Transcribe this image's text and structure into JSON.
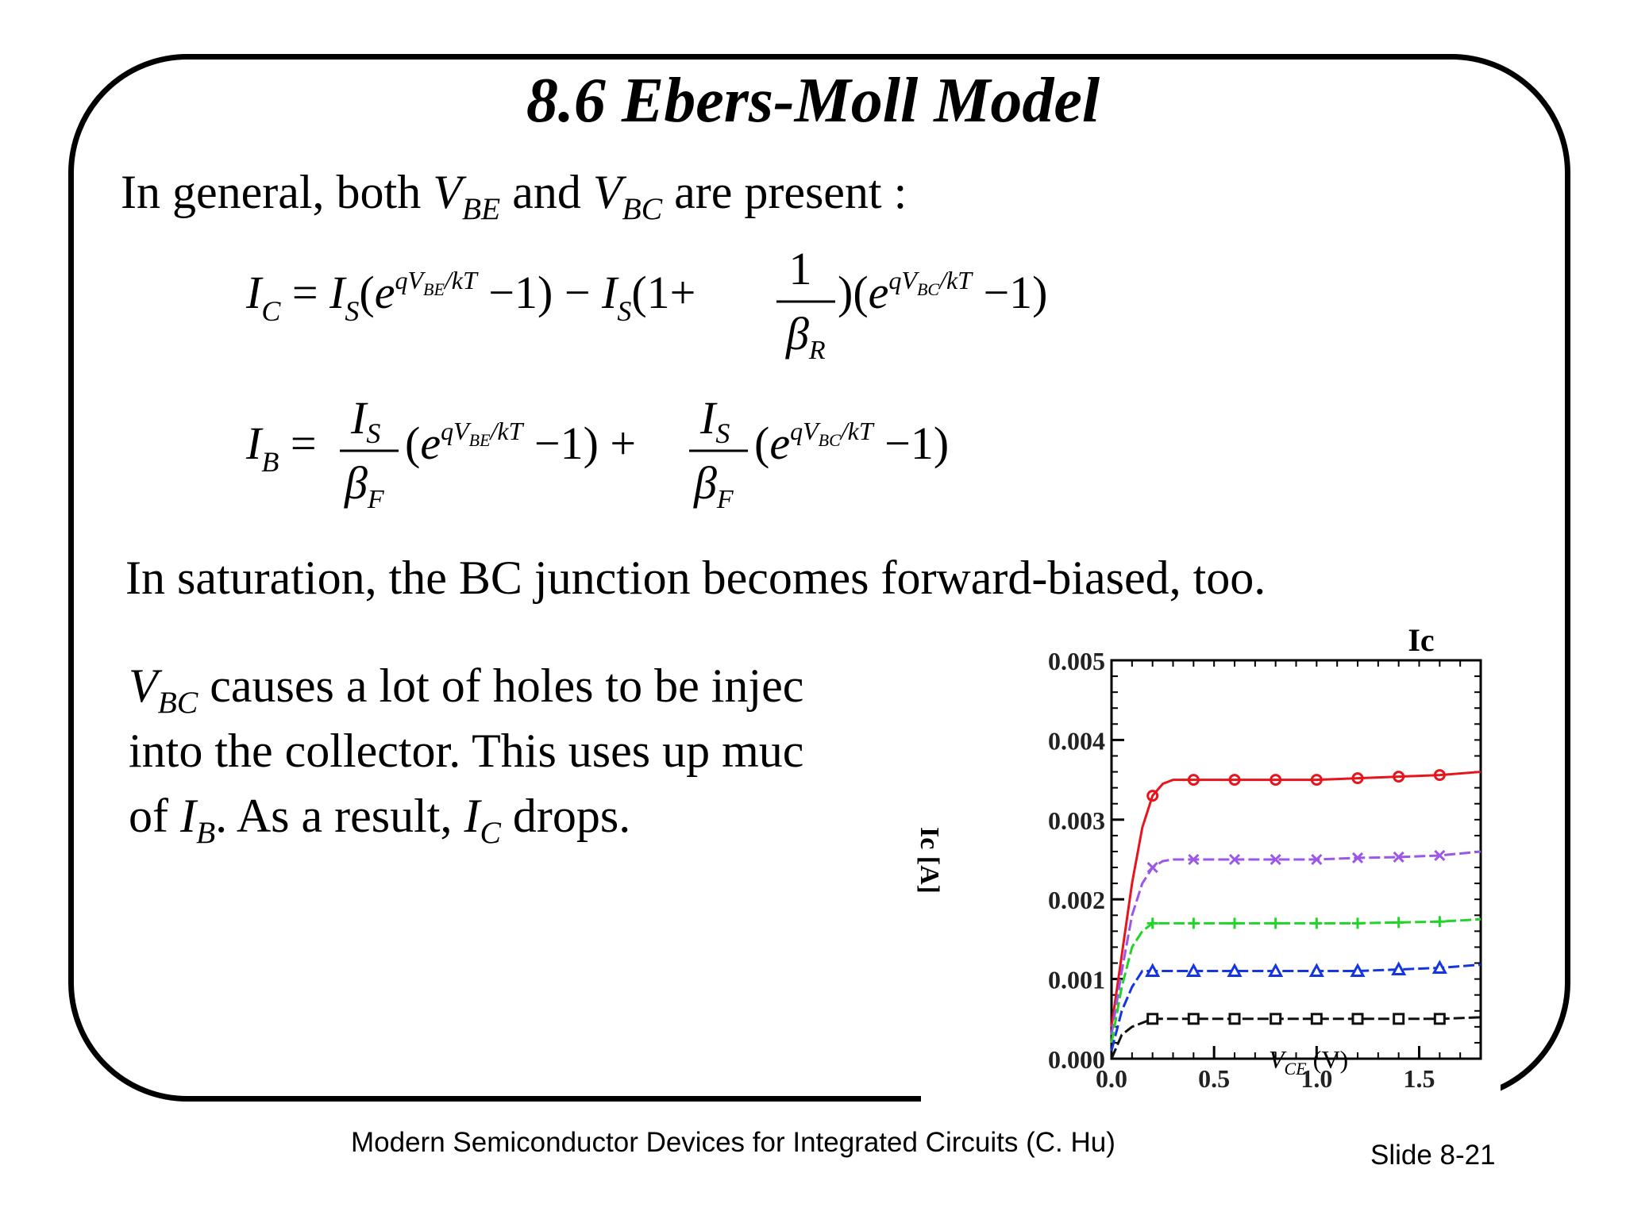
{
  "slide": {
    "title": "8.6  Ebers-Moll Model",
    "line1": {
      "pre": "In general, both ",
      "v1": "V",
      "v1sub": "BE",
      "mid": " and ",
      "v2": "V",
      "v2sub": "BC",
      "post": " are present :"
    },
    "eq1": "I_C = I_S (e^{qV_BE/kT} − 1) − I_S (1 + 1/β_R)(e^{qV_BC/kT} − 1)",
    "eq2": "I_B = (I_S/β_F)(e^{qV_BE/kT} − 1) + (I_S/β_F)(e^{qV_BC/kT} − 1)",
    "saturation": "In saturation, the BC junction becomes forward-biased, too.",
    "para": {
      "l1_var": "V",
      "l1_sub": "BC",
      "l1_text": " causes a lot of holes to be injec",
      "l2_text": "into the collector. This uses up muc",
      "l3_pre": "of ",
      "l3_v1": "I",
      "l3_v1sub": "B",
      "l3_mid": ". As a result, ",
      "l3_v2": "I",
      "l3_v2sub": "C",
      "l3_post": " drops."
    }
  },
  "footer": {
    "source": "Modern Semiconductor Devices for Integrated Circuits (C. Hu)",
    "slide_number": "Slide 8-21"
  },
  "chart_data": {
    "type": "line",
    "title": "Ic",
    "ylabel": "Ic [A]",
    "xlabel": "V_CE (V)",
    "xlabel_base": "V",
    "xlabel_sub": "CE",
    "xlabel_unit": " (V)",
    "xlim": [
      0,
      1.8
    ],
    "ylim": [
      0,
      0.005
    ],
    "xticks": [
      "0.0",
      "0.5",
      "1.0",
      "1.5"
    ],
    "yticks": [
      "0.000",
      "0.001",
      "0.002",
      "0.003",
      "0.004",
      "0.005"
    ],
    "grid": false,
    "series": [
      {
        "color": "#e8141b",
        "marker": "circle",
        "x": [
          0,
          0.05,
          0.1,
          0.15,
          0.2,
          0.25,
          0.3,
          0.4,
          0.6,
          0.8,
          1.0,
          1.2,
          1.4,
          1.6,
          1.8
        ],
        "y": [
          0.0004,
          0.0013,
          0.0022,
          0.0029,
          0.0033,
          0.00345,
          0.0035,
          0.0035,
          0.0035,
          0.0035,
          0.0035,
          0.00352,
          0.00354,
          0.00356,
          0.0036
        ]
      },
      {
        "color": "#9c56e8",
        "marker": "x",
        "x": [
          0,
          0.05,
          0.1,
          0.15,
          0.2,
          0.25,
          0.3,
          0.4,
          0.6,
          0.8,
          1.0,
          1.2,
          1.4,
          1.6,
          1.8
        ],
        "y": [
          0.0003,
          0.0011,
          0.0018,
          0.0022,
          0.0024,
          0.00248,
          0.0025,
          0.0025,
          0.0025,
          0.0025,
          0.0025,
          0.00252,
          0.00253,
          0.00255,
          0.0026
        ]
      },
      {
        "color": "#22d42a",
        "marker": "plus",
        "x": [
          0,
          0.05,
          0.1,
          0.15,
          0.2,
          0.3,
          0.4,
          0.6,
          0.8,
          1.0,
          1.2,
          1.4,
          1.6,
          1.8
        ],
        "y": [
          0.0002,
          0.0009,
          0.0014,
          0.0016,
          0.0017,
          0.0017,
          0.0017,
          0.0017,
          0.0017,
          0.0017,
          0.0017,
          0.00171,
          0.00172,
          0.00175
        ]
      },
      {
        "color": "#1435e0",
        "marker": "triangle",
        "x": [
          0,
          0.05,
          0.1,
          0.15,
          0.2,
          0.3,
          0.4,
          0.6,
          0.8,
          1.0,
          1.2,
          1.4,
          1.6,
          1.8
        ],
        "y": [
          0.0001,
          0.0006,
          0.0009,
          0.0011,
          0.0011,
          0.0011,
          0.0011,
          0.0011,
          0.0011,
          0.0011,
          0.0011,
          0.00112,
          0.00114,
          0.00118
        ]
      },
      {
        "color": "#111111",
        "marker": "square",
        "x": [
          0,
          0.05,
          0.1,
          0.2,
          0.3,
          0.4,
          0.6,
          0.8,
          1.0,
          1.2,
          1.4,
          1.6,
          1.8
        ],
        "y": [
          0.0,
          0.0003,
          0.0004,
          0.0005,
          0.0005,
          0.0005,
          0.0005,
          0.0005,
          0.0005,
          0.0005,
          0.0005,
          0.0005,
          0.00052
        ]
      }
    ]
  }
}
